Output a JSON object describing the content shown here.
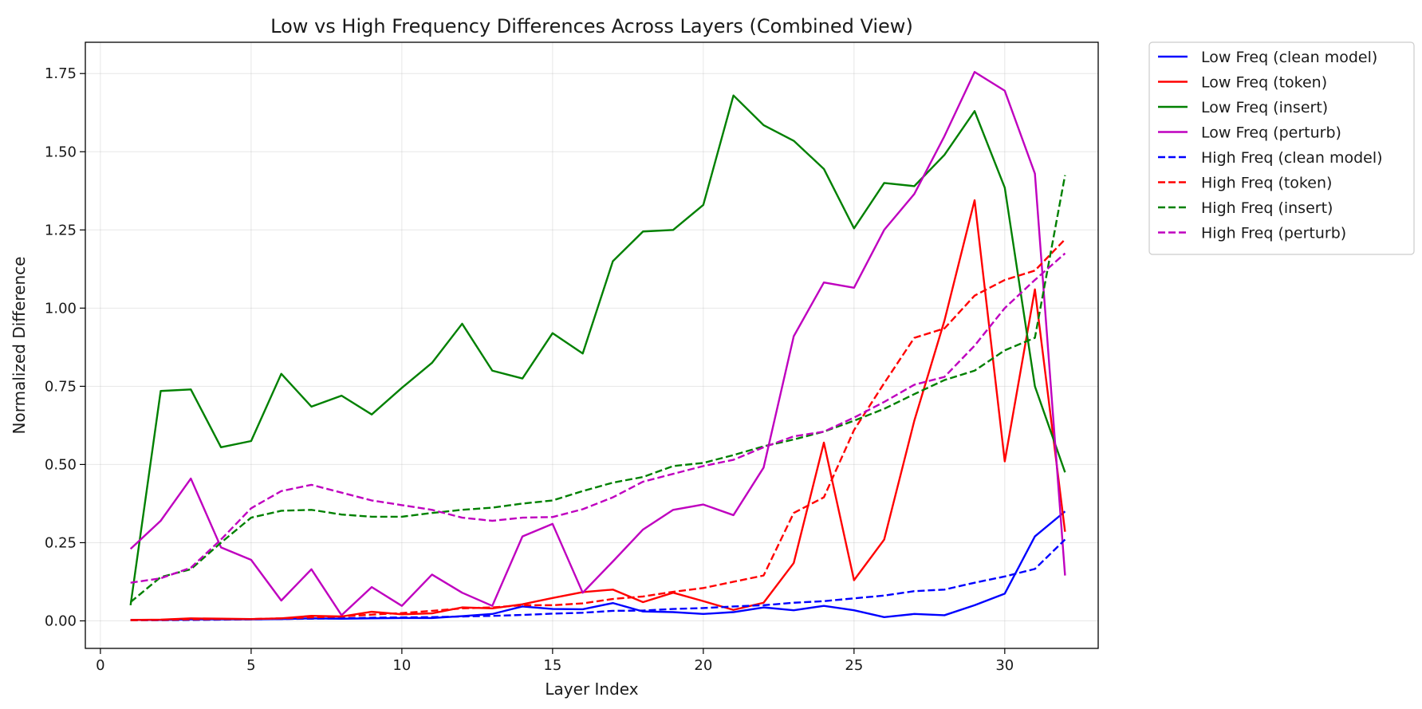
{
  "chart_data": {
    "type": "line",
    "title": "Low vs High Frequency Differences Across Layers (Combined View)",
    "xlabel": "Layer Index",
    "ylabel": "Normalized Difference",
    "xlim": [
      -0.5,
      33.1
    ],
    "ylim": [
      -0.088,
      1.85
    ],
    "xticks": [
      0,
      5,
      10,
      15,
      20,
      25,
      30
    ],
    "xtick_labels": [
      "0",
      "5",
      "10",
      "15",
      "20",
      "25",
      "30"
    ],
    "yticks": [
      0,
      0.25,
      0.5,
      0.75,
      1.0,
      1.25,
      1.5,
      1.75
    ],
    "ytick_labels": [
      "0.00",
      "0.25",
      "0.50",
      "0.75",
      "1.00",
      "1.25",
      "1.50",
      "1.75"
    ],
    "grid": true,
    "legend_position": "outside upper right",
    "x": [
      1,
      2,
      3,
      4,
      5,
      6,
      7,
      8,
      9,
      10,
      11,
      12,
      13,
      14,
      15,
      16,
      17,
      18,
      19,
      20,
      21,
      22,
      23,
      24,
      25,
      26,
      27,
      28,
      29,
      30,
      31,
      32
    ],
    "series": [
      {
        "name": "Low Freq (clean model)",
        "color": "#0000ff",
        "style": "solid",
        "values": [
          0.003,
          0.003,
          0.005,
          0.005,
          0.005,
          0.006,
          0.008,
          0.007,
          0.008,
          0.009,
          0.009,
          0.015,
          0.022,
          0.046,
          0.038,
          0.037,
          0.057,
          0.03,
          0.028,
          0.022,
          0.028,
          0.043,
          0.034,
          0.048,
          0.034,
          0.012,
          0.022,
          0.018,
          0.05,
          0.087,
          0.27,
          0.35
        ]
      },
      {
        "name": "Low Freq (token)",
        "color": "#ff0000",
        "style": "solid",
        "values": [
          0.003,
          0.004,
          0.008,
          0.007,
          0.006,
          0.008,
          0.016,
          0.014,
          0.029,
          0.021,
          0.024,
          0.043,
          0.04,
          0.053,
          0.073,
          0.092,
          0.1,
          0.06,
          0.09,
          0.063,
          0.035,
          0.058,
          0.185,
          0.57,
          0.13,
          0.26,
          0.64,
          0.96,
          1.345,
          0.51,
          1.06,
          0.285
        ]
      },
      {
        "name": "Low Freq (insert)",
        "color": "#008000",
        "style": "solid",
        "values": [
          0.05,
          0.735,
          0.74,
          0.555,
          0.575,
          0.79,
          0.685,
          0.72,
          0.66,
          0.745,
          0.825,
          0.95,
          0.8,
          0.775,
          0.92,
          0.855,
          1.15,
          1.245,
          1.25,
          1.33,
          1.68,
          1.585,
          1.535,
          1.445,
          1.255,
          1.4,
          1.39,
          1.49,
          1.63,
          1.385,
          0.75,
          0.475
        ]
      },
      {
        "name": "Low Freq (perturb)",
        "color": "#bf00bf",
        "style": "solid",
        "values": [
          0.23,
          0.32,
          0.455,
          0.235,
          0.195,
          0.065,
          0.165,
          0.018,
          0.108,
          0.048,
          0.148,
          0.09,
          0.048,
          0.27,
          0.31,
          0.09,
          0.19,
          0.292,
          0.355,
          0.372,
          0.338,
          0.49,
          0.91,
          1.082,
          1.065,
          1.25,
          1.365,
          1.55,
          1.755,
          1.695,
          1.43,
          0.145
        ]
      },
      {
        "name": "High Freq (clean model)",
        "color": "#0000ff",
        "style": "dashed",
        "values": [
          0.002,
          0.002,
          0.003,
          0.004,
          0.005,
          0.006,
          0.007,
          0.008,
          0.01,
          0.011,
          0.012,
          0.014,
          0.016,
          0.019,
          0.023,
          0.026,
          0.032,
          0.033,
          0.038,
          0.041,
          0.046,
          0.05,
          0.058,
          0.063,
          0.072,
          0.081,
          0.095,
          0.1,
          0.122,
          0.142,
          0.166,
          0.26
        ]
      },
      {
        "name": "High Freq (token)",
        "color": "#ff0000",
        "style": "dashed",
        "values": [
          0.002,
          0.003,
          0.005,
          0.006,
          0.006,
          0.008,
          0.011,
          0.014,
          0.02,
          0.025,
          0.032,
          0.04,
          0.043,
          0.05,
          0.05,
          0.056,
          0.07,
          0.078,
          0.093,
          0.105,
          0.125,
          0.145,
          0.345,
          0.395,
          0.61,
          0.76,
          0.905,
          0.935,
          1.04,
          1.09,
          1.12,
          1.22
        ]
      },
      {
        "name": "High Freq (insert)",
        "color": "#008000",
        "style": "dashed",
        "values": [
          0.06,
          0.14,
          0.165,
          0.25,
          0.33,
          0.352,
          0.355,
          0.34,
          0.333,
          0.333,
          0.345,
          0.355,
          0.362,
          0.375,
          0.385,
          0.415,
          0.442,
          0.46,
          0.495,
          0.505,
          0.53,
          0.558,
          0.58,
          0.605,
          0.64,
          0.678,
          0.725,
          0.77,
          0.8,
          0.865,
          0.905,
          1.425
        ]
      },
      {
        "name": "High Freq (perturb)",
        "color": "#bf00bf",
        "style": "dashed",
        "values": [
          0.122,
          0.136,
          0.17,
          0.26,
          0.36,
          0.415,
          0.435,
          0.41,
          0.385,
          0.37,
          0.355,
          0.33,
          0.32,
          0.33,
          0.332,
          0.357,
          0.395,
          0.445,
          0.47,
          0.495,
          0.515,
          0.555,
          0.59,
          0.605,
          0.65,
          0.7,
          0.755,
          0.78,
          0.88,
          1.0,
          1.09,
          1.175
        ]
      }
    ]
  }
}
